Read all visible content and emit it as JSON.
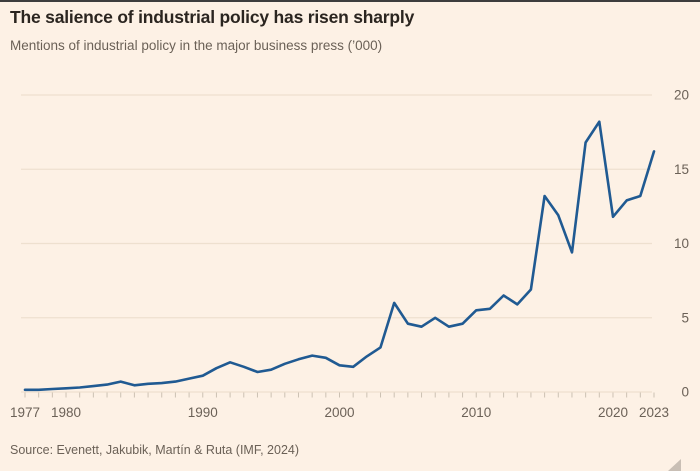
{
  "header": {
    "title": "The salience of industrial policy has risen sharply",
    "subtitle": "Mentions of industrial policy in the major business press (’000)"
  },
  "footer": {
    "source": "Source: Evenett, Jakubik, Martín & Ruta (IMF, 2024)"
  },
  "colors": {
    "background": "#fdf1e5",
    "line": "#205a92",
    "title_text": "#2b2520",
    "muted_text": "#6b6157",
    "gridline": "#eee0cf",
    "axis_tick": "#ccc1b3",
    "resize_handle": "#c9bfb5",
    "top_strip": "#3d3d3d"
  },
  "chart_data": {
    "type": "line",
    "title": "The salience of industrial policy has risen sharply",
    "subtitle": "Mentions of industrial policy in the major business press (’000)",
    "xlabel": "",
    "ylabel": "",
    "ylim": [
      0,
      20
    ],
    "y_ticks": [
      0,
      5,
      10,
      15,
      20
    ],
    "y_axis_side": "right",
    "grid": "horizontal",
    "x_range": [
      1977,
      2023
    ],
    "x_tick_labels": [
      "1977",
      "1980",
      "1990",
      "2000",
      "2010",
      "2020",
      "2023"
    ],
    "x_tick_label_years": [
      1977,
      1980,
      1990,
      2000,
      2010,
      2020,
      2023
    ],
    "x": [
      1977,
      1978,
      1979,
      1980,
      1981,
      1982,
      1983,
      1984,
      1985,
      1986,
      1987,
      1988,
      1989,
      1990,
      1991,
      1992,
      1993,
      1994,
      1995,
      1996,
      1997,
      1998,
      1999,
      2000,
      2001,
      2002,
      2003,
      2004,
      2005,
      2006,
      2007,
      2008,
      2009,
      2010,
      2011,
      2012,
      2013,
      2014,
      2015,
      2016,
      2017,
      2018,
      2019,
      2020,
      2021,
      2022,
      2023
    ],
    "series": [
      {
        "name": "Mentions of industrial policy ('000)",
        "values": [
          0.15,
          0.15,
          0.2,
          0.25,
          0.3,
          0.4,
          0.5,
          0.7,
          0.45,
          0.55,
          0.6,
          0.7,
          0.9,
          1.1,
          1.6,
          2.0,
          1.7,
          1.35,
          1.5,
          1.9,
          2.2,
          2.45,
          2.3,
          1.8,
          1.7,
          2.4,
          3.0,
          6.0,
          4.6,
          4.4,
          5.0,
          4.4,
          4.6,
          5.5,
          5.6,
          6.5,
          5.9,
          6.9,
          13.2,
          11.9,
          9.4,
          16.8,
          18.2,
          11.8,
          12.9,
          13.2,
          16.2
        ]
      }
    ],
    "line_color": "#205a92"
  }
}
